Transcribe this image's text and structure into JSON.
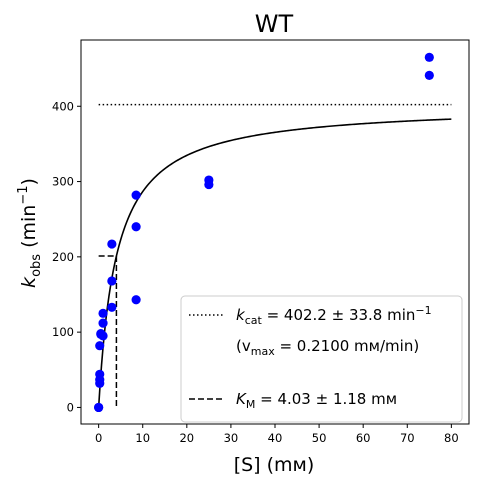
{
  "chart_data": {
    "type": "scatter",
    "title": "WT",
    "xlabel": "[S] (mм)",
    "ylabel": "k_obs (min⁻¹)",
    "ylabel_parts": {
      "main": "k",
      "sub": "obs",
      "tail": " (min",
      "sup": "−1",
      "close": ")"
    },
    "xlim": [
      -4,
      84
    ],
    "ylim": [
      -22,
      488
    ],
    "xticks": [
      0,
      10,
      20,
      30,
      40,
      50,
      60,
      70,
      80
    ],
    "yticks": [
      0,
      100,
      200,
      300,
      400
    ],
    "grid": false,
    "legend_position": "lower-right",
    "point_color": "#0000ff",
    "series": [
      {
        "name": "data",
        "style": "points",
        "x": [
          0,
          0,
          0.25,
          0.25,
          0.25,
          0.25,
          0.5,
          0.5,
          1,
          1,
          1,
          3,
          3,
          3,
          8.5,
          8.5,
          8.5,
          25,
          25,
          75,
          75
        ],
        "y": [
          0,
          0,
          32,
          37,
          44,
          82,
          98,
          97,
          112,
          125,
          95,
          133,
          168,
          217,
          143,
          240,
          282,
          296,
          302,
          441,
          465
        ]
      },
      {
        "name": "fit",
        "style": "curve",
        "model": "michaelis-menten",
        "kcat": 402.2,
        "km": 4.03,
        "x_range": [
          0,
          80
        ]
      }
    ],
    "reference_lines": [
      {
        "kind": "horizontal-dotted",
        "y": 402.2,
        "x_from": 0,
        "x_to": 80
      },
      {
        "kind": "km-marker-dashed",
        "x": 4.03,
        "y": 201.1
      }
    ],
    "legend": {
      "kcat_entry": {
        "sym": "k",
        "sub": "cat",
        "text": " = 402.2 ± 33.8 min",
        "sup": "−1"
      },
      "vmax_entry": {
        "open": "(v",
        "sub": "max",
        "text": " = 0.2100 mм/min)"
      },
      "km_entry": {
        "sym": "K",
        "sub": "M",
        "text": " = 4.03 ± 1.18 mм"
      }
    }
  }
}
